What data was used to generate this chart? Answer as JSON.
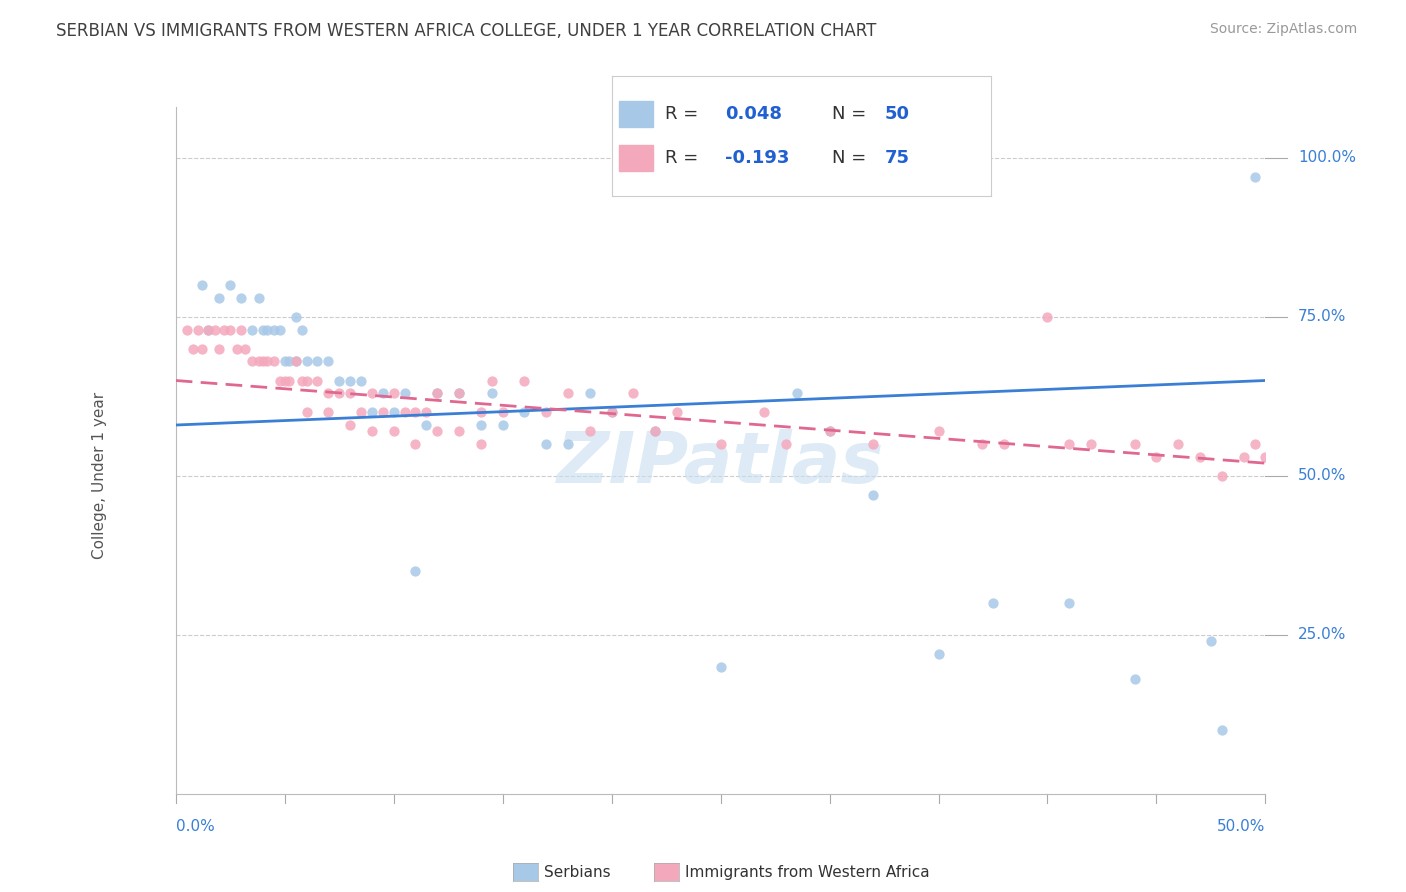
{
  "title": "SERBIAN VS IMMIGRANTS FROM WESTERN AFRICA COLLEGE, UNDER 1 YEAR CORRELATION CHART",
  "source": "Source: ZipAtlas.com",
  "ylabel": "College, Under 1 year",
  "ylabel_ticks": [
    "100.0%",
    "75.0%",
    "50.0%",
    "25.0%"
  ],
  "ylabel_tick_vals": [
    100,
    75,
    50,
    25
  ],
  "xlim": [
    0,
    50
  ],
  "ylim": [
    0,
    108
  ],
  "legend_r1": "R = 0.048",
  "legend_n1": "N = 50",
  "legend_r2": "R = -0.193",
  "legend_n2": "N = 75",
  "color_serbian": "#a8c8e8",
  "color_immigrants": "#f4a8bc",
  "color_trend_serbian": "#3a7fd5",
  "color_trend_immigrants": "#e06890",
  "color_title": "#404040",
  "color_r_value": "#2060d0",
  "color_axis_labels": "#3a7fd5",
  "color_grid": "#cccccc",
  "watermark_color": "#c8dff0",
  "watermark_text": "ZIPatlas",
  "trend_s_x0": 0,
  "trend_s_y0": 58,
  "trend_s_x1": 50,
  "trend_s_y1": 65,
  "trend_i_x0": 0,
  "trend_i_y0": 65,
  "trend_i_x1": 50,
  "trend_i_y1": 52,
  "serbians_x": [
    1.2,
    1.5,
    2.0,
    2.5,
    3.0,
    3.5,
    3.8,
    4.0,
    4.2,
    4.5,
    4.8,
    5.0,
    5.2,
    5.5,
    5.5,
    5.8,
    6.0,
    6.5,
    7.0,
    7.5,
    8.0,
    8.5,
    9.0,
    9.5,
    10.0,
    10.5,
    11.5,
    12.0,
    13.0,
    14.0,
    14.5,
    15.0,
    16.0,
    17.0,
    18.0,
    19.0,
    20.0,
    22.0,
    25.0,
    28.5,
    30.0,
    32.0,
    35.0,
    37.5,
    41.0,
    44.0,
    47.5,
    48.0,
    49.5,
    11.0
  ],
  "serbians_y": [
    80,
    73,
    78,
    80,
    78,
    73,
    78,
    73,
    73,
    73,
    73,
    68,
    68,
    68,
    75,
    73,
    68,
    68,
    68,
    65,
    65,
    65,
    60,
    63,
    60,
    63,
    58,
    63,
    63,
    58,
    63,
    58,
    60,
    55,
    55,
    63,
    60,
    57,
    20,
    63,
    57,
    47,
    22,
    30,
    30,
    18,
    24,
    10,
    97,
    35
  ],
  "immigrants_x": [
    0.5,
    0.8,
    1.0,
    1.2,
    1.5,
    1.8,
    2.0,
    2.2,
    2.5,
    2.8,
    3.0,
    3.2,
    3.5,
    3.8,
    4.0,
    4.2,
    4.5,
    4.8,
    5.0,
    5.2,
    5.5,
    5.8,
    6.0,
    6.5,
    7.0,
    7.5,
    8.0,
    8.5,
    9.0,
    9.5,
    10.0,
    10.5,
    11.0,
    11.5,
    12.0,
    13.0,
    14.0,
    14.5,
    15.0,
    16.0,
    17.0,
    18.0,
    19.0,
    20.0,
    21.0,
    22.0,
    23.0,
    25.0,
    27.0,
    28.0,
    30.0,
    32.0,
    35.0,
    37.0,
    38.0,
    40.0,
    41.0,
    42.0,
    44.0,
    45.0,
    46.0,
    47.0,
    48.0,
    49.0,
    49.5,
    50.0,
    6.0,
    7.0,
    8.0,
    9.0,
    10.0,
    11.0,
    12.0,
    13.0,
    14.0
  ],
  "immigrants_y": [
    73,
    70,
    73,
    70,
    73,
    73,
    70,
    73,
    73,
    70,
    73,
    70,
    68,
    68,
    68,
    68,
    68,
    65,
    65,
    65,
    68,
    65,
    65,
    65,
    63,
    63,
    63,
    60,
    63,
    60,
    63,
    60,
    60,
    60,
    63,
    63,
    60,
    65,
    60,
    65,
    60,
    63,
    57,
    60,
    63,
    57,
    60,
    55,
    60,
    55,
    57,
    55,
    57,
    55,
    55,
    75,
    55,
    55,
    55,
    53,
    55,
    53,
    50,
    53,
    55,
    53,
    60,
    60,
    58,
    57,
    57,
    55,
    57,
    57,
    55
  ]
}
